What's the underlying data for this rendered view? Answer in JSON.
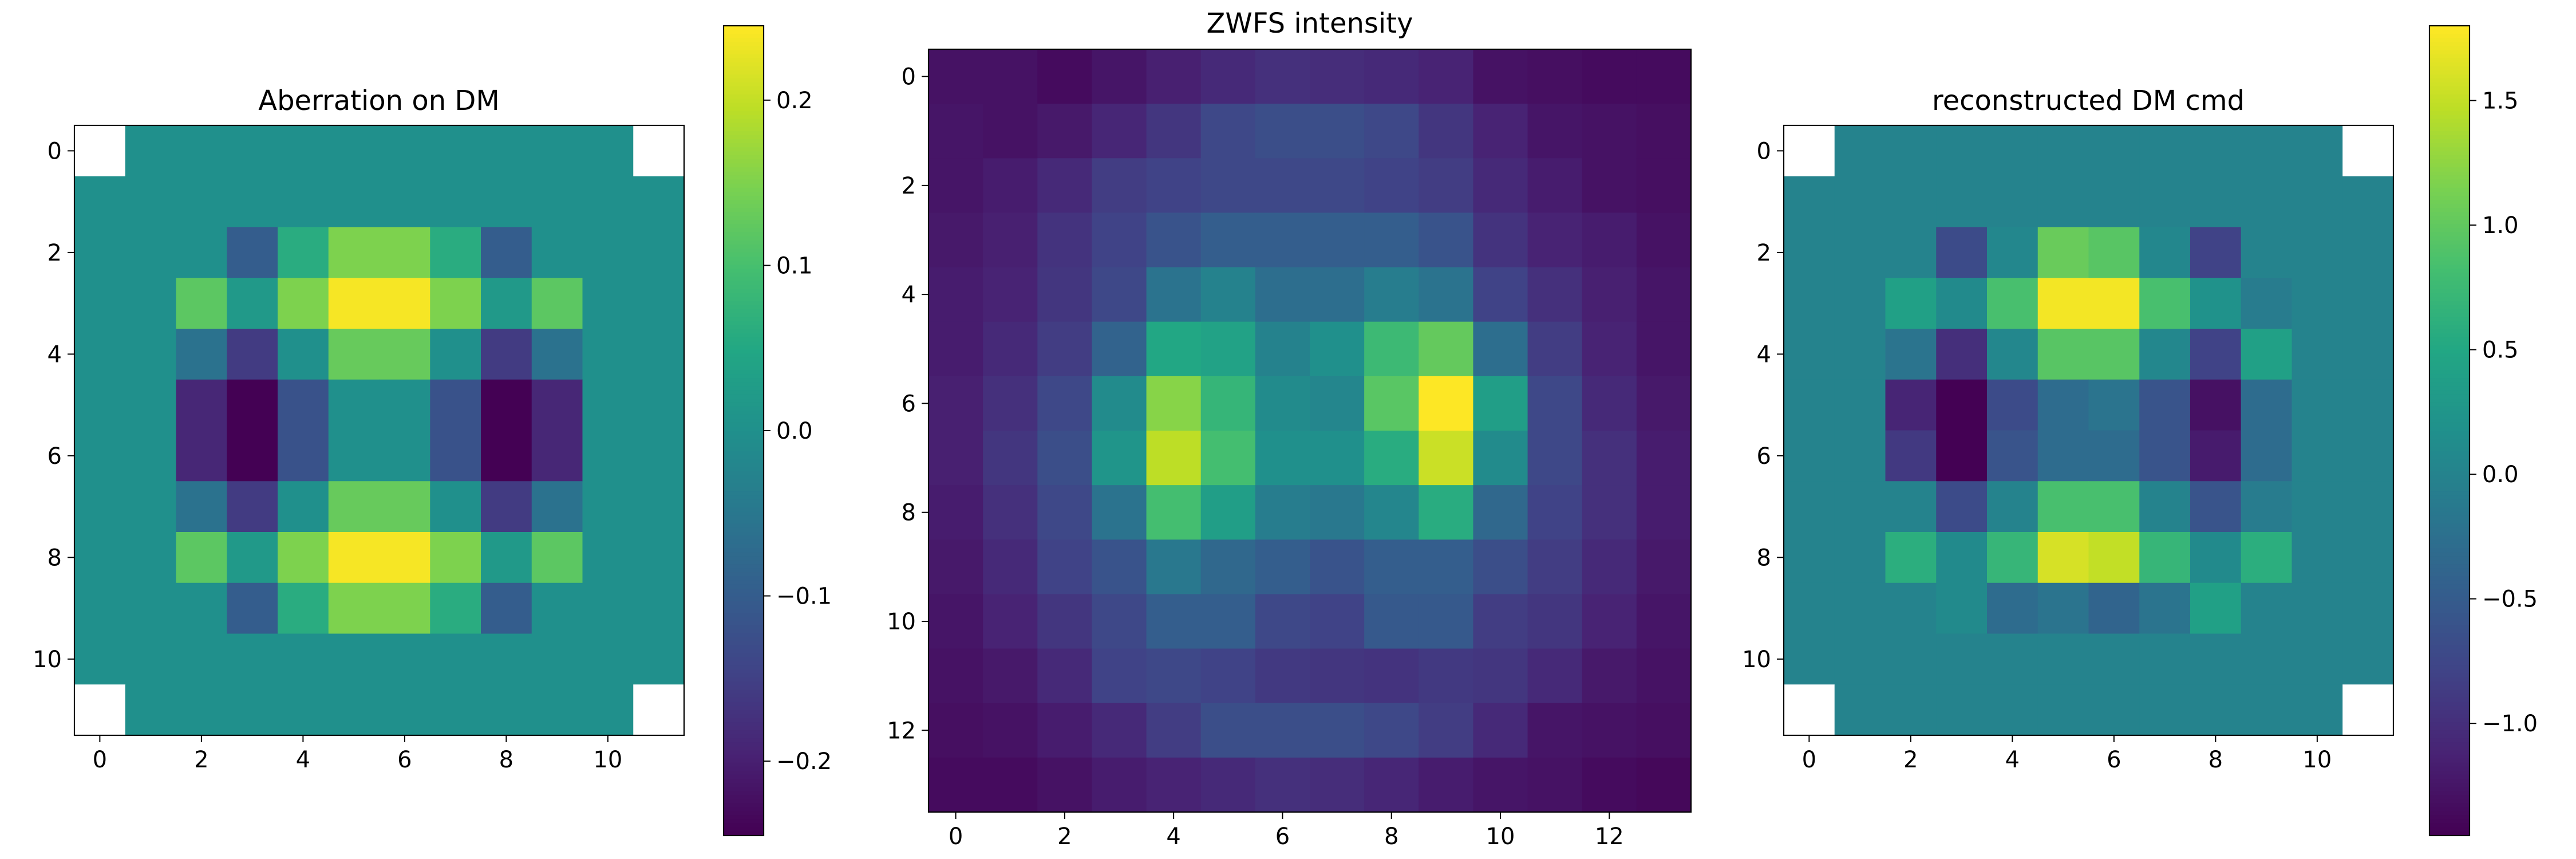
{
  "chart_data": [
    {
      "type": "heatmap",
      "title": "Aberration on DM",
      "colormap": "viridis",
      "vmin": -0.245,
      "vmax": 0.245,
      "xlim": [
        -0.5,
        11.5
      ],
      "ylim": [
        11.5,
        -0.5
      ],
      "xticks": [
        0,
        2,
        4,
        6,
        8,
        10
      ],
      "yticks": [
        0,
        2,
        4,
        6,
        8,
        10
      ],
      "xtick_labels": [
        "0",
        "2",
        "4",
        "6",
        "8",
        "10"
      ],
      "ytick_labels": [
        "0",
        "2",
        "4",
        "6",
        "8",
        "10"
      ],
      "masked_cells": [
        [
          0,
          0
        ],
        [
          0,
          11
        ],
        [
          11,
          0
        ],
        [
          11,
          11
        ]
      ],
      "z": [
        [
          null,
          0,
          0,
          0,
          0,
          0,
          0,
          0,
          0,
          0,
          0,
          null
        ],
        [
          0,
          0,
          0,
          0,
          0,
          0,
          0,
          0,
          0,
          0,
          0,
          0
        ],
        [
          0,
          0,
          0,
          -0.1,
          0.06,
          0.15,
          0.15,
          0.06,
          -0.1,
          0,
          0,
          0
        ],
        [
          0,
          0,
          0.12,
          0.02,
          0.15,
          0.24,
          0.24,
          0.15,
          0.02,
          0.12,
          0,
          0
        ],
        [
          0,
          0,
          -0.06,
          -0.16,
          0,
          0.13,
          0.13,
          0,
          -0.16,
          -0.06,
          0,
          0
        ],
        [
          0,
          0,
          -0.19,
          -0.245,
          -0.12,
          0,
          0,
          -0.12,
          -0.245,
          -0.19,
          0,
          0
        ],
        [
          0,
          0,
          -0.19,
          -0.245,
          -0.12,
          0,
          0,
          -0.12,
          -0.245,
          -0.19,
          0,
          0
        ],
        [
          0,
          0,
          -0.06,
          -0.16,
          0,
          0.13,
          0.13,
          0,
          -0.16,
          -0.06,
          0,
          0
        ],
        [
          0,
          0,
          0.12,
          0.02,
          0.15,
          0.24,
          0.24,
          0.15,
          0.02,
          0.12,
          0,
          0
        ],
        [
          0,
          0,
          0,
          -0.1,
          0.06,
          0.15,
          0.15,
          0.06,
          -0.1,
          0,
          0,
          0
        ],
        [
          0,
          0,
          0,
          0,
          0,
          0,
          0,
          0,
          0,
          0,
          0,
          0
        ],
        [
          null,
          0,
          0,
          0,
          0,
          0,
          0,
          0,
          0,
          0,
          0,
          null
        ]
      ],
      "colorbar": {
        "ticks": [
          -0.2,
          -0.1,
          0.0,
          0.1,
          0.2
        ],
        "tick_labels": [
          "−0.2",
          "−0.1",
          "0.0",
          "0.1",
          "0.2"
        ]
      }
    },
    {
      "type": "heatmap",
      "title": "ZWFS intensity",
      "colormap": "viridis",
      "vmin": 0,
      "vmax": 1,
      "xlim": [
        -0.5,
        13.5
      ],
      "ylim": [
        13.5,
        -0.5
      ],
      "xticks": [
        0,
        2,
        4,
        6,
        8,
        10,
        12
      ],
      "yticks": [
        0,
        2,
        4,
        6,
        8,
        10,
        12
      ],
      "xtick_labels": [
        "0",
        "2",
        "4",
        "6",
        "8",
        "10",
        "12"
      ],
      "ytick_labels": [
        "0",
        "2",
        "4",
        "6",
        "8",
        "10",
        "12"
      ],
      "z": [
        [
          0.05,
          0.05,
          0.03,
          0.06,
          0.09,
          0.12,
          0.14,
          0.13,
          0.12,
          0.1,
          0.05,
          0.04,
          0.03,
          0.03
        ],
        [
          0.06,
          0.05,
          0.07,
          0.11,
          0.16,
          0.22,
          0.24,
          0.24,
          0.22,
          0.16,
          0.1,
          0.06,
          0.05,
          0.04
        ],
        [
          0.06,
          0.08,
          0.12,
          0.18,
          0.2,
          0.22,
          0.22,
          0.22,
          0.2,
          0.18,
          0.12,
          0.08,
          0.05,
          0.04
        ],
        [
          0.07,
          0.09,
          0.15,
          0.2,
          0.26,
          0.3,
          0.3,
          0.3,
          0.3,
          0.26,
          0.15,
          0.1,
          0.08,
          0.05
        ],
        [
          0.08,
          0.1,
          0.16,
          0.22,
          0.38,
          0.44,
          0.36,
          0.36,
          0.42,
          0.38,
          0.2,
          0.14,
          0.09,
          0.06
        ],
        [
          0.08,
          0.12,
          0.18,
          0.32,
          0.6,
          0.58,
          0.44,
          0.5,
          0.68,
          0.76,
          0.36,
          0.18,
          0.1,
          0.06
        ],
        [
          0.09,
          0.14,
          0.22,
          0.48,
          0.82,
          0.66,
          0.48,
          0.46,
          0.74,
          1.0,
          0.56,
          0.22,
          0.12,
          0.07
        ],
        [
          0.09,
          0.16,
          0.24,
          0.52,
          0.9,
          0.7,
          0.5,
          0.5,
          0.62,
          0.92,
          0.48,
          0.22,
          0.14,
          0.08
        ],
        [
          0.08,
          0.14,
          0.22,
          0.38,
          0.7,
          0.56,
          0.42,
          0.4,
          0.46,
          0.62,
          0.34,
          0.2,
          0.14,
          0.08
        ],
        [
          0.07,
          0.12,
          0.2,
          0.26,
          0.4,
          0.34,
          0.3,
          0.26,
          0.3,
          0.3,
          0.24,
          0.18,
          0.12,
          0.07
        ],
        [
          0.06,
          0.1,
          0.16,
          0.22,
          0.3,
          0.3,
          0.22,
          0.2,
          0.28,
          0.28,
          0.18,
          0.16,
          0.1,
          0.06
        ],
        [
          0.05,
          0.07,
          0.12,
          0.2,
          0.22,
          0.2,
          0.17,
          0.16,
          0.15,
          0.17,
          0.16,
          0.12,
          0.07,
          0.05
        ],
        [
          0.04,
          0.05,
          0.08,
          0.12,
          0.18,
          0.24,
          0.24,
          0.24,
          0.22,
          0.18,
          0.12,
          0.06,
          0.05,
          0.04
        ],
        [
          0.03,
          0.03,
          0.05,
          0.08,
          0.1,
          0.12,
          0.14,
          0.13,
          0.11,
          0.08,
          0.06,
          0.05,
          0.03,
          0.02
        ]
      ]
    },
    {
      "type": "heatmap",
      "title": "reconstructed DM cmd",
      "colormap": "viridis",
      "vmin": -1.45,
      "vmax": 1.8,
      "xlim": [
        -0.5,
        11.5
      ],
      "ylim": [
        11.5,
        -0.5
      ],
      "xticks": [
        0,
        2,
        4,
        6,
        8,
        10
      ],
      "yticks": [
        0,
        2,
        4,
        6,
        8,
        10
      ],
      "xtick_labels": [
        "0",
        "2",
        "4",
        "6",
        "8",
        "10"
      ],
      "ytick_labels": [
        "0",
        "2",
        "4",
        "6",
        "8",
        "10"
      ],
      "masked_cells": [
        [
          0,
          0
        ],
        [
          0,
          11
        ],
        [
          11,
          0
        ],
        [
          11,
          11
        ]
      ],
      "z": [
        [
          null,
          0,
          0,
          0,
          0,
          0,
          0,
          0,
          0,
          0,
          0,
          null
        ],
        [
          0,
          0,
          0,
          0,
          0,
          0,
          0,
          0,
          0,
          0,
          0,
          0
        ],
        [
          0,
          0,
          0,
          -0.7,
          0.05,
          1.05,
          0.95,
          0.05,
          -0.8,
          0,
          0,
          0
        ],
        [
          0,
          0,
          0.4,
          0.1,
          0.85,
          1.75,
          1.75,
          0.85,
          0.2,
          -0.1,
          0,
          0
        ],
        [
          0,
          0,
          -0.2,
          -1.0,
          0.05,
          0.95,
          0.95,
          0.05,
          -0.8,
          0.4,
          0,
          0
        ],
        [
          0,
          0,
          -1.1,
          -1.45,
          -0.7,
          -0.3,
          -0.2,
          -0.6,
          -1.3,
          -0.3,
          0,
          0
        ],
        [
          0,
          0,
          -0.9,
          -1.45,
          -0.6,
          -0.3,
          -0.3,
          -0.6,
          -1.2,
          -0.3,
          0,
          0
        ],
        [
          0,
          0,
          0,
          -0.7,
          0,
          0.85,
          0.85,
          0,
          -0.6,
          -0.1,
          0,
          0
        ],
        [
          0,
          0,
          0.6,
          0.1,
          0.7,
          1.6,
          1.5,
          0.7,
          0.1,
          0.6,
          0,
          0
        ],
        [
          0,
          0,
          0,
          0.1,
          -0.3,
          -0.2,
          -0.4,
          -0.2,
          0.4,
          0,
          0,
          0
        ],
        [
          0,
          0,
          0,
          0,
          0,
          0,
          0,
          0,
          0,
          0,
          0,
          0
        ],
        [
          null,
          0,
          0,
          0,
          0,
          0,
          0,
          0,
          0,
          0,
          0,
          null
        ]
      ],
      "colorbar": {
        "ticks": [
          -1.0,
          -0.5,
          0.0,
          0.5,
          1.0,
          1.5
        ],
        "tick_labels": [
          "−1.0",
          "−0.5",
          "0.0",
          "0.5",
          "1.0",
          "1.5"
        ]
      }
    }
  ]
}
